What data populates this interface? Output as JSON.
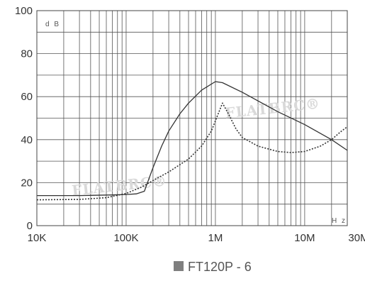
{
  "chart_data": {
    "type": "line",
    "title": "",
    "xlabel": "",
    "ylabel": "",
    "x_scale": "log",
    "x_unit_label": "H z",
    "y_unit_label": "d B",
    "xlim": [
      10000,
      30000000
    ],
    "ylim": [
      0,
      100
    ],
    "grid": true,
    "x_ticks": [
      {
        "value": 10000,
        "label": "10K"
      },
      {
        "value": 100000,
        "label": "100K"
      },
      {
        "value": 1000000,
        "label": "1M"
      },
      {
        "value": 10000000,
        "label": "10M"
      },
      {
        "value": 30000000,
        "label": "30M"
      }
    ],
    "y_ticks": [
      {
        "value": 0,
        "label": "0"
      },
      {
        "value": 20,
        "label": "20"
      },
      {
        "value": 40,
        "label": "40"
      },
      {
        "value": 60,
        "label": "60"
      },
      {
        "value": 80,
        "label": "80"
      },
      {
        "value": 100,
        "label": "100"
      }
    ],
    "series": [
      {
        "style": "solid",
        "color": "#333333",
        "points": [
          [
            10000,
            14
          ],
          [
            30000,
            14
          ],
          [
            70000,
            14.3
          ],
          [
            100000,
            14.5
          ],
          [
            130000,
            14.8
          ],
          [
            160000,
            16
          ],
          [
            200000,
            27
          ],
          [
            250000,
            37
          ],
          [
            300000,
            44
          ],
          [
            400000,
            52
          ],
          [
            500000,
            57
          ],
          [
            700000,
            63
          ],
          [
            1000000,
            67
          ],
          [
            1200000,
            66.5
          ],
          [
            2000000,
            62
          ],
          [
            5000000,
            53
          ],
          [
            10000000,
            47
          ],
          [
            20000000,
            40
          ],
          [
            30000000,
            35
          ]
        ]
      },
      {
        "style": "dotted",
        "color": "#333333",
        "points": [
          [
            10000,
            12
          ],
          [
            30000,
            12.2
          ],
          [
            60000,
            13
          ],
          [
            100000,
            15
          ],
          [
            150000,
            18
          ],
          [
            200000,
            21
          ],
          [
            300000,
            25
          ],
          [
            500000,
            31
          ],
          [
            700000,
            37
          ],
          [
            900000,
            44
          ],
          [
            1050000,
            51
          ],
          [
            1200000,
            57
          ],
          [
            1400000,
            52
          ],
          [
            1700000,
            45
          ],
          [
            2000000,
            41
          ],
          [
            3000000,
            37
          ],
          [
            5000000,
            34.5
          ],
          [
            7000000,
            34
          ],
          [
            10000000,
            34.5
          ],
          [
            15000000,
            37
          ],
          [
            20000000,
            40
          ],
          [
            25000000,
            43.5
          ],
          [
            30000000,
            46
          ]
        ]
      }
    ]
  },
  "watermarks": [
    {
      "text": "FLATBRC®"
    },
    {
      "text": "FLATBRC®"
    }
  ],
  "caption": {
    "marker_color": "#7f7f7f",
    "text": "FT120P - 6"
  }
}
